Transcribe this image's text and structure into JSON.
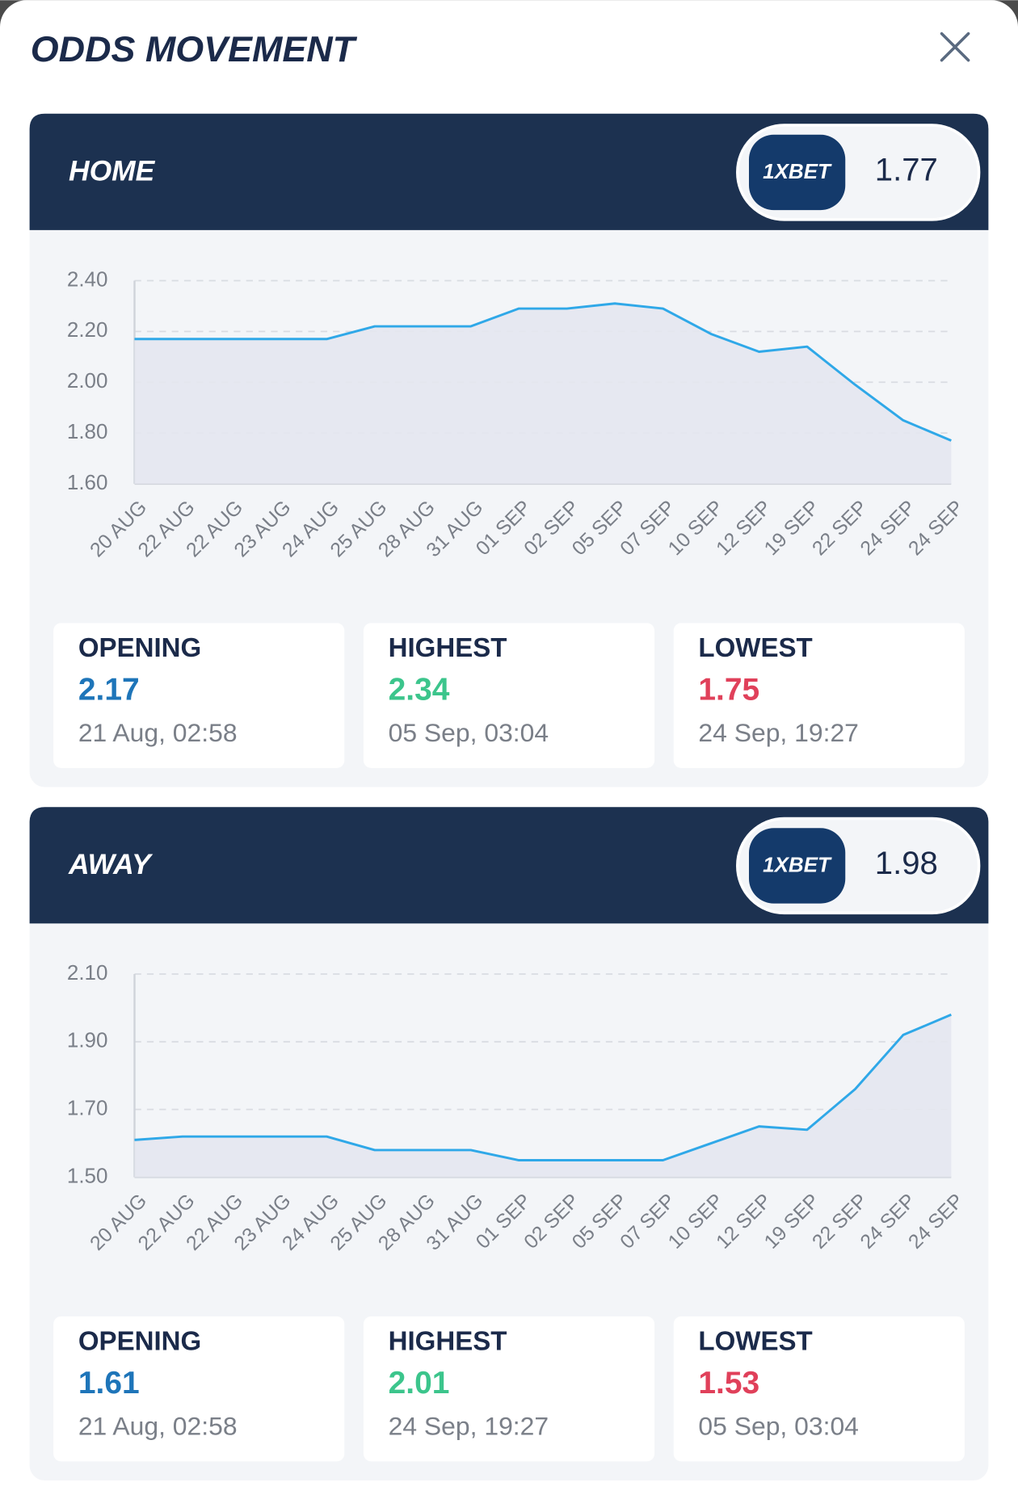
{
  "title": "ODDS MOVEMENT",
  "panels": [
    {
      "name": "HOME",
      "bookmaker": "1XBET",
      "odds": 1.77,
      "chart_data": {
        "type": "line",
        "categories": [
          "20 AUG",
          "22 AUG",
          "22 AUG",
          "23 AUG",
          "24 AUG",
          "25 AUG",
          "28 AUG",
          "31 AUG",
          "01 SEP",
          "02 SEP",
          "05 SEP",
          "07 SEP",
          "10 SEP",
          "12 SEP",
          "19 SEP",
          "22 SEP",
          "24 SEP",
          "24 SEP"
        ],
        "values": [
          2.17,
          2.17,
          2.17,
          2.17,
          2.17,
          2.22,
          2.22,
          2.22,
          2.29,
          2.29,
          2.31,
          2.29,
          2.19,
          2.12,
          2.14,
          1.99,
          1.85,
          1.77
        ],
        "color": "#2fa8e8",
        "ylim": [
          1.6,
          2.4
        ],
        "yticks": [
          {
            "value": 2.4,
            "label": "2.40"
          },
          {
            "value": 2.2,
            "label": "2.20"
          },
          {
            "value": 2.0,
            "label": "2.00"
          },
          {
            "value": 1.8,
            "label": "1.80"
          },
          {
            "value": 1.6,
            "label": "1.60"
          }
        ],
        "grid": true
      },
      "stats": [
        {
          "label": "OPENING",
          "value": 2.17,
          "time": "21 Aug, 02:58",
          "color": "#1e75b9"
        },
        {
          "label": "HIGHEST",
          "value": 2.34,
          "time": "05 Sep, 03:04",
          "color": "#3cc58c"
        },
        {
          "label": "LOWEST",
          "value": 1.75,
          "time": "24 Sep, 19:27",
          "color": "#e0405a"
        }
      ]
    },
    {
      "name": "AWAY",
      "bookmaker": "1XBET",
      "odds": 1.98,
      "chart_data": {
        "type": "line",
        "categories": [
          "20 AUG",
          "22 AUG",
          "22 AUG",
          "23 AUG",
          "24 AUG",
          "25 AUG",
          "28 AUG",
          "31 AUG",
          "01 SEP",
          "02 SEP",
          "05 SEP",
          "07 SEP",
          "10 SEP",
          "12 SEP",
          "19 SEP",
          "22 SEP",
          "24 SEP",
          "24 SEP"
        ],
        "values": [
          1.61,
          1.62,
          1.62,
          1.62,
          1.62,
          1.58,
          1.58,
          1.58,
          1.55,
          1.55,
          1.55,
          1.55,
          1.6,
          1.65,
          1.64,
          1.76,
          1.92,
          1.98
        ],
        "color": "#2fa8e8",
        "ylim": [
          1.5,
          2.1
        ],
        "yticks": [
          {
            "value": 2.1,
            "label": "2.10"
          },
          {
            "value": 1.9,
            "label": "1.90"
          },
          {
            "value": 1.7,
            "label": "1.70"
          },
          {
            "value": 1.5,
            "label": "1.50"
          }
        ],
        "grid": true
      },
      "stats": [
        {
          "label": "OPENING",
          "value": 1.61,
          "time": "21 Aug, 02:58",
          "color": "#1e75b9"
        },
        {
          "label": "HIGHEST",
          "value": 2.01,
          "time": "24 Sep, 19:27",
          "color": "#3cc58c"
        },
        {
          "label": "LOWEST",
          "value": 1.53,
          "time": "05 Sep, 03:04",
          "color": "#e0405a"
        }
      ]
    }
  ]
}
